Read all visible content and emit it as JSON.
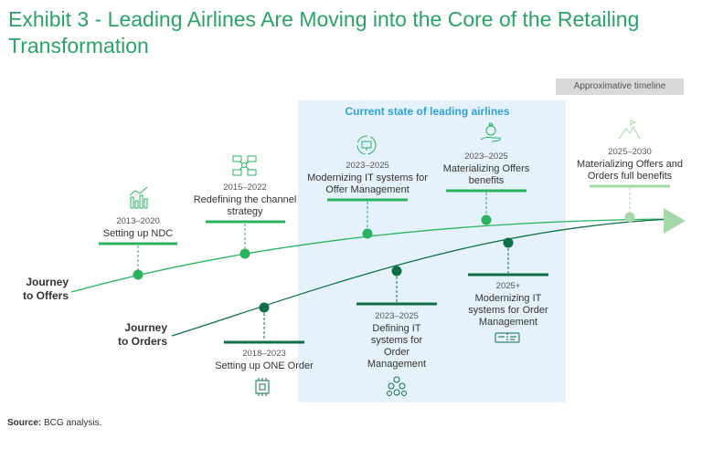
{
  "title": "Exhibit 3 - Leading Airlines Are Moving into the Core of the Retailing Transformation",
  "badge": "Approximative timeline",
  "panel_title": "Current state of leading airlines",
  "journeys": {
    "offers": [
      "Journey",
      "to Offers"
    ],
    "orders": [
      "Journey",
      "to Orders"
    ]
  },
  "milestones": {
    "ndc": {
      "year": "2013–2020",
      "text": "Setting up NDC",
      "icon": "bar-chart-icon"
    },
    "channel": {
      "year": "2015–2022",
      "text": "Redefining the channel strategy",
      "icon": "channel-network-icon"
    },
    "offer_it": {
      "year": "2023–2025",
      "text": "Modernizing IT systems for Offer Management",
      "icon": "monitor-refresh-icon"
    },
    "materializing": {
      "year": "2023–2025",
      "text": "Materializing Offers benefits",
      "icon": "money-bag-hand-icon"
    },
    "full_benefits": {
      "year": "2025–2030",
      "text": "Materializing Offers and Orders full benefits",
      "icon": "mountain-flag-icon"
    },
    "one_order": {
      "year": "2018–2023",
      "text": "Setting up ONE Order",
      "icon": "chip-icon"
    },
    "order_it_def": {
      "year": "2023–2025",
      "text": "Defining IT systems for Order Management",
      "icon": "network-cluster-icon"
    },
    "order_it_mod": {
      "year": "2025+",
      "text": "Modernizing IT systems for Order Management",
      "icon": "boarding-pass-icon"
    }
  },
  "colors": {
    "offers": "#29b35f",
    "orders": "#0e6f47",
    "faded": "#a6d9a9",
    "title": "#29a36a",
    "panel": "#e6f2fb",
    "panel_title": "#2ea3d9"
  },
  "source_label": "Source:",
  "source_text": "BCG analysis."
}
